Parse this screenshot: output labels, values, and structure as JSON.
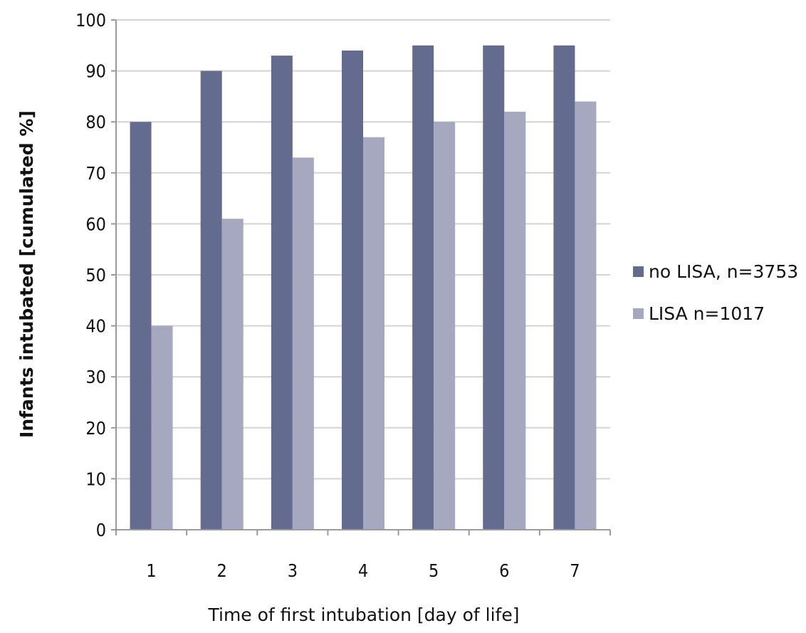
{
  "chart_data": {
    "type": "bar",
    "title": "",
    "xlabel": "Time of first intubation [day of life]",
    "ylabel": "Infants intubated [cumulated %]",
    "categories": [
      "1",
      "2",
      "3",
      "4",
      "5",
      "6",
      "7"
    ],
    "ylim": [
      0,
      100
    ],
    "yticks": [
      "0",
      "10",
      "20",
      "30",
      "40",
      "50",
      "60",
      "70",
      "80",
      "90",
      "100"
    ],
    "grid": true,
    "legend_position": "right",
    "series": [
      {
        "name": "no LISA, n=3753",
        "color": "#636b8e",
        "values": [
          80,
          90,
          93,
          94,
          95,
          95,
          95
        ]
      },
      {
        "name": "LISA n=1017",
        "color": "#a5a8bf",
        "values": [
          40,
          61,
          73,
          77,
          80,
          82,
          84
        ]
      }
    ]
  }
}
